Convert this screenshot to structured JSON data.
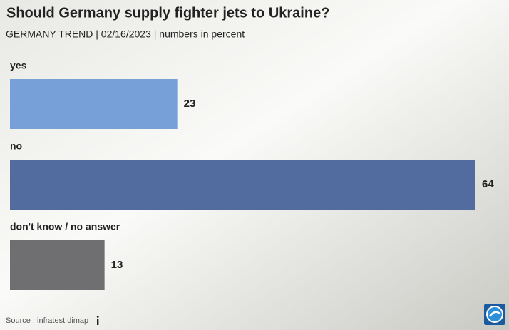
{
  "chart_data": {
    "type": "bar",
    "orientation": "horizontal",
    "title": "Should Germany supply fighter jets to Ukraine?",
    "subtitle": "GERMANY TREND | 02/16/2023 | numbers in percent",
    "categories": [
      "yes",
      "no",
      "don't know / no answer"
    ],
    "values": [
      23,
      64,
      13
    ],
    "colors": [
      "#77a0d9",
      "#536c9f",
      "#6f6f71"
    ],
    "source": "Source : infratest dimap"
  }
}
